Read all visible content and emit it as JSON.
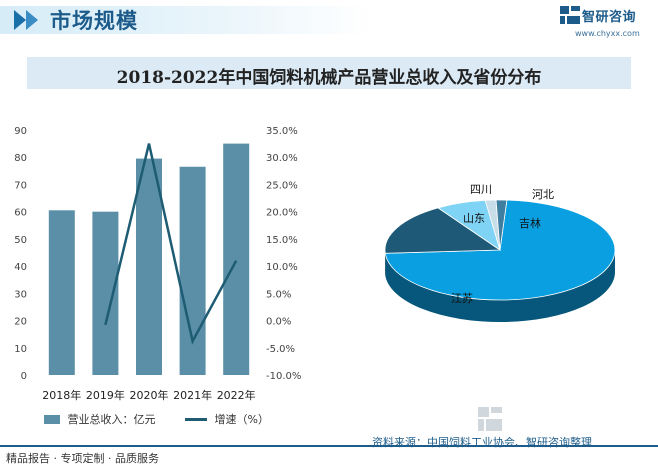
{
  "header": {
    "title": "市场规模"
  },
  "brand": {
    "name": "智研咨询",
    "url": "www.chyxx.com"
  },
  "chart_title": "2018-2022年中国饲料机械产品营业总收入及省份分布",
  "chart_data": [
    {
      "type": "bar",
      "categories": [
        "2018年",
        "2019年",
        "2020年",
        "2021年",
        "2022年"
      ],
      "series": [
        {
          "name": "营业总收入：亿元",
          "type": "bar",
          "axis": "left",
          "values": [
            60.5,
            60.0,
            79.5,
            76.5,
            85.0
          ],
          "color": "#5b8fa8"
        },
        {
          "name": "增速（%）",
          "type": "line",
          "axis": "right",
          "values": [
            null,
            -0.8,
            32.5,
            -3.8,
            11.0
          ],
          "color": "#1d5c73"
        }
      ],
      "left_ylim": [
        0,
        90
      ],
      "left_ticks": [
        "0",
        "10",
        "20",
        "30",
        "40",
        "50",
        "60",
        "70",
        "80",
        "90"
      ],
      "right_ylim": [
        -10,
        35
      ],
      "right_ticks": [
        "-10.0%",
        "-5.0%",
        "0.0%",
        "5.0%",
        "10.0%",
        "15.0%",
        "20.0%",
        "25.0%",
        "30.0%",
        "35.0%"
      ]
    },
    {
      "type": "pie",
      "style": "3d",
      "labels": [
        "江苏",
        "吉林",
        "山东",
        "四川",
        "河北"
      ],
      "values": [
        73,
        17,
        7,
        1.5,
        1.5
      ],
      "colors": [
        "#0a9fe0",
        "#1e5a78",
        "#7fd3f5",
        "#c7dde8",
        "#3e7ea0"
      ]
    }
  ],
  "legend": {
    "bar_label": "营业总收入：亿元",
    "line_label": "增速（%）"
  },
  "footer": {
    "left": "精品报告 · 专项定制 · 品质服务",
    "source": "资料来源：中国饲料工业协会、智研咨询整理"
  }
}
